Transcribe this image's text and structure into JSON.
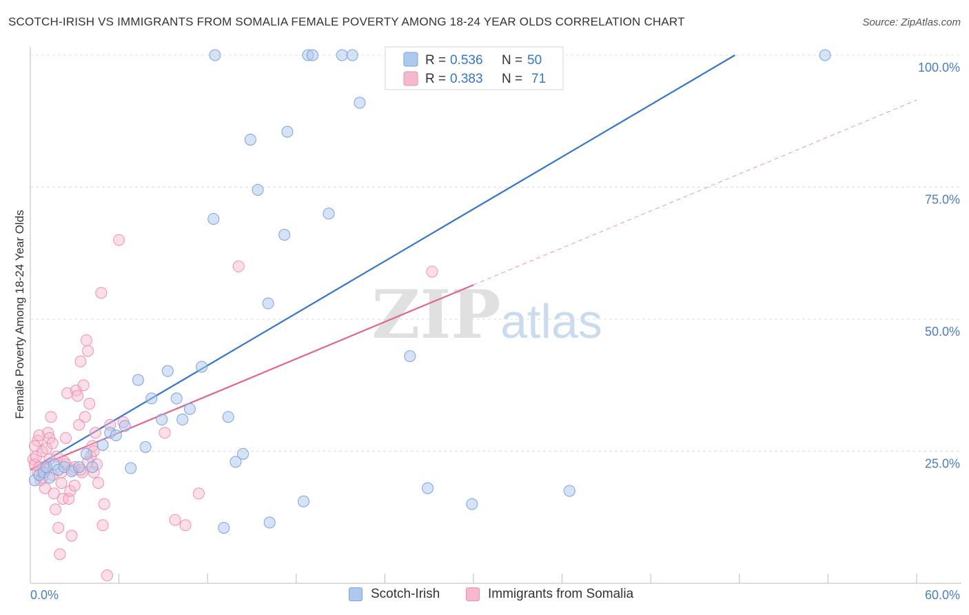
{
  "header": {
    "title": "SCOTCH-IRISH VS IMMIGRANTS FROM SOMALIA FEMALE POVERTY AMONG 18-24 YEAR OLDS CORRELATION CHART",
    "source": "Source: ZipAtlas.com"
  },
  "watermark": {
    "zip": "ZIP",
    "atlas": "atlas"
  },
  "legend_top": {
    "rows": [
      {
        "r_label": "R =",
        "r_value": "0.536",
        "n_label": "N =",
        "n_value": "50"
      },
      {
        "r_label": "R =",
        "r_value": "0.383",
        "n_label": "N =",
        "n_value": "71"
      }
    ]
  },
  "legend_bottom": {
    "items": [
      {
        "label": "Scotch-Irish"
      },
      {
        "label": "Immigrants from Somalia"
      }
    ]
  },
  "colors": {
    "blue_fill": "#aec8ee",
    "blue_stroke": "#7aa3dc",
    "blue_line": "#3476c8",
    "pink_fill": "#f6b8cb",
    "pink_stroke": "#ee8fae",
    "pink_line": "#e0648f",
    "tick_label": "#4a7cc4",
    "grid": "#dddddd"
  },
  "chart_data": {
    "type": "scatter",
    "title": "SCOTCH-IRISH VS IMMIGRANTS FROM SOMALIA FEMALE POVERTY AMONG 18-24 YEAR OLDS CORRELATION CHART",
    "xlabel": "",
    "ylabel": "Female Poverty Among 18-24 Year Olds",
    "xlim": [
      0,
      60
    ],
    "ylim": [
      0,
      102
    ],
    "x_tick_labels": [
      "0.0%",
      "60.0%"
    ],
    "y_ticks": [
      25,
      50,
      75,
      100
    ],
    "y_tick_labels": [
      "25.0%",
      "50.0%",
      "75.0%",
      "100.0%"
    ],
    "grid": true,
    "legend_position": "top-center",
    "series": [
      {
        "name": "Scotch-Irish",
        "r": 0.536,
        "n": 50,
        "trend": {
          "x": [
            0,
            47.7
          ],
          "y": [
            21.5,
            100
          ]
        },
        "points": [
          [
            0.3,
            19.5
          ],
          [
            0.6,
            20.5
          ],
          [
            0.9,
            21.0
          ],
          [
            1.1,
            22.0
          ],
          [
            1.3,
            20.0
          ],
          [
            1.6,
            22.5
          ],
          [
            1.9,
            21.5
          ],
          [
            2.3,
            22.0
          ],
          [
            2.8,
            21.2
          ],
          [
            3.3,
            22.0
          ],
          [
            3.8,
            24.5
          ],
          [
            4.2,
            22.0
          ],
          [
            4.9,
            26.2
          ],
          [
            5.4,
            28.5
          ],
          [
            5.8,
            28.0
          ],
          [
            6.4,
            29.8
          ],
          [
            6.8,
            21.8
          ],
          [
            7.3,
            38.5
          ],
          [
            7.8,
            25.8
          ],
          [
            8.2,
            35.0
          ],
          [
            8.9,
            31.0
          ],
          [
            9.3,
            40.2
          ],
          [
            9.9,
            35.0
          ],
          [
            10.3,
            31.0
          ],
          [
            10.8,
            33.0
          ],
          [
            11.6,
            41.0
          ],
          [
            12.4,
            69.0
          ],
          [
            12.5,
            100.0
          ],
          [
            13.1,
            10.5
          ],
          [
            13.4,
            31.5
          ],
          [
            13.9,
            23.0
          ],
          [
            14.4,
            24.5
          ],
          [
            14.9,
            84.0
          ],
          [
            15.4,
            74.5
          ],
          [
            16.1,
            53.0
          ],
          [
            16.2,
            11.5
          ],
          [
            17.4,
            85.5
          ],
          [
            17.2,
            66.0
          ],
          [
            18.5,
            15.5
          ],
          [
            18.8,
            100.0
          ],
          [
            19.1,
            100.0
          ],
          [
            20.2,
            70.0
          ],
          [
            21.1,
            100.0
          ],
          [
            21.8,
            100.0
          ],
          [
            22.3,
            91.0
          ],
          [
            25.7,
            43.0
          ],
          [
            26.9,
            18.0
          ],
          [
            29.9,
            15.0
          ],
          [
            36.5,
            17.5
          ],
          [
            53.8,
            100.0
          ]
        ]
      },
      {
        "name": "Immigrants from Somalia",
        "r": 0.383,
        "n": 71,
        "trend": {
          "x": [
            0,
            30
          ],
          "y": [
            21.5,
            56.5
          ]
        },
        "trend_dashed": {
          "x": [
            30,
            60
          ],
          "y": [
            56.5,
            91.5
          ]
        },
        "points": [
          [
            0.2,
            23.5
          ],
          [
            0.3,
            22.5
          ],
          [
            0.4,
            24.0
          ],
          [
            0.5,
            21.0
          ],
          [
            0.5,
            27.0
          ],
          [
            0.6,
            28.0
          ],
          [
            0.7,
            19.5
          ],
          [
            0.8,
            25.0
          ],
          [
            0.9,
            22.0
          ],
          [
            1.0,
            18.0
          ],
          [
            1.1,
            21.5
          ],
          [
            1.2,
            28.5
          ],
          [
            1.3,
            27.5
          ],
          [
            1.4,
            31.5
          ],
          [
            1.5,
            20.5
          ],
          [
            1.6,
            17.0
          ],
          [
            1.7,
            14.0
          ],
          [
            1.8,
            24.0
          ],
          [
            1.9,
            10.5
          ],
          [
            2.0,
            5.5
          ],
          [
            2.1,
            19.0
          ],
          [
            2.2,
            16.0
          ],
          [
            2.3,
            23.0
          ],
          [
            2.4,
            27.5
          ],
          [
            2.5,
            36.0
          ],
          [
            2.6,
            16.0
          ],
          [
            2.7,
            17.5
          ],
          [
            2.8,
            9.0
          ],
          [
            2.9,
            21.5
          ],
          [
            3.0,
            18.5
          ],
          [
            3.1,
            36.5
          ],
          [
            3.2,
            35.5
          ],
          [
            3.3,
            30.0
          ],
          [
            3.4,
            42.0
          ],
          [
            3.5,
            21.0
          ],
          [
            3.6,
            37.5
          ],
          [
            3.7,
            31.5
          ],
          [
            3.8,
            46.0
          ],
          [
            3.9,
            44.0
          ],
          [
            4.0,
            34.0
          ],
          [
            4.1,
            24.0
          ],
          [
            4.2,
            26.0
          ],
          [
            4.3,
            25.0
          ],
          [
            4.4,
            28.5
          ],
          [
            4.5,
            22.5
          ],
          [
            4.6,
            19.0
          ],
          [
            4.8,
            55.0
          ],
          [
            4.9,
            11.0
          ],
          [
            5.0,
            15.0
          ],
          [
            5.2,
            1.5
          ],
          [
            5.4,
            30.0
          ],
          [
            6.0,
            65.0
          ],
          [
            6.3,
            30.5
          ],
          [
            9.1,
            28.5
          ],
          [
            9.8,
            12.0
          ],
          [
            10.5,
            11.0
          ],
          [
            11.4,
            17.0
          ],
          [
            14.1,
            60.0
          ],
          [
            27.2,
            59.0
          ],
          [
            0.3,
            26.0
          ],
          [
            0.6,
            22.0
          ],
          [
            0.8,
            20.0
          ],
          [
            1.1,
            25.5
          ],
          [
            1.3,
            23.5
          ],
          [
            1.5,
            26.5
          ],
          [
            2.1,
            21.0
          ],
          [
            2.4,
            22.5
          ],
          [
            3.0,
            22.0
          ],
          [
            3.4,
            21.5
          ],
          [
            3.9,
            23.0
          ],
          [
            4.3,
            21.0
          ]
        ]
      }
    ]
  }
}
